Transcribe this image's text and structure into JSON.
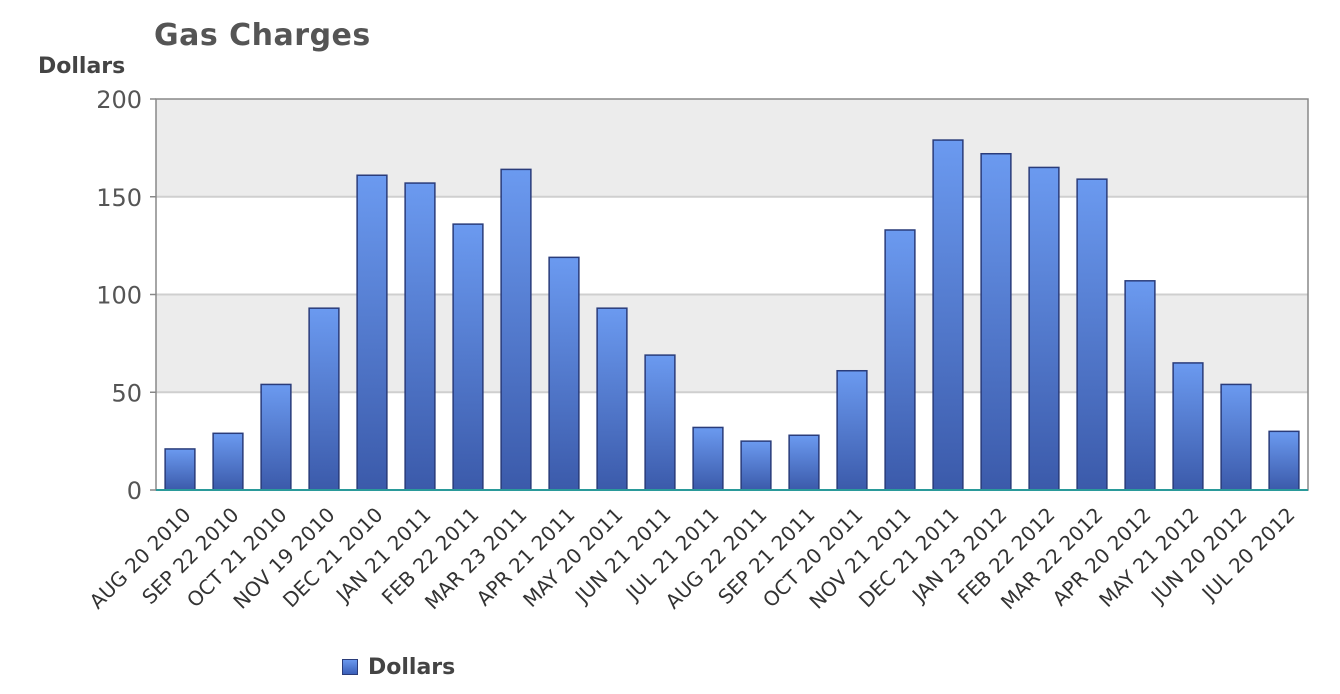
{
  "chart_data": {
    "type": "bar",
    "title": "Gas Charges",
    "ylabel": "Dollars",
    "xlabel": "",
    "ylim": [
      0,
      200
    ],
    "yticks": [
      0,
      50,
      100,
      150,
      200
    ],
    "grid": true,
    "legend_position": "bottom",
    "colors": {
      "bar_top": "#6b9af0",
      "bar_bottom": "#3b5aaa",
      "bar_stroke": "#2a3c7a",
      "band": "#ececec",
      "axis": "#2a9a9a"
    },
    "categories": [
      "AUG 20 2010",
      "SEP 22 2010",
      "OCT 21 2010",
      "NOV 19 2010",
      "DEC 21 2010",
      "JAN 21 2011",
      "FEB 22 2011",
      "MAR 23 2011",
      "APR 21 2011",
      "MAY 20 2011",
      "JUN 21 2011",
      "JUL 21 2011",
      "AUG 22 2011",
      "SEP 21 2011",
      "OCT 20 2011",
      "NOV 21 2011",
      "DEC 21 2011",
      "JAN 23 2012",
      "FEB 22 2012",
      "MAR 22 2012",
      "APR 20 2012",
      "MAY 21 2012",
      "JUN 20 2012",
      "JUL 20 2012"
    ],
    "series": [
      {
        "name": "Dollars",
        "values": [
          21,
          29,
          54,
          93,
          161,
          157,
          136,
          164,
          119,
          93,
          69,
          32,
          25,
          28,
          61,
          133,
          179,
          172,
          165,
          159,
          107,
          65,
          54,
          30
        ]
      }
    ]
  }
}
